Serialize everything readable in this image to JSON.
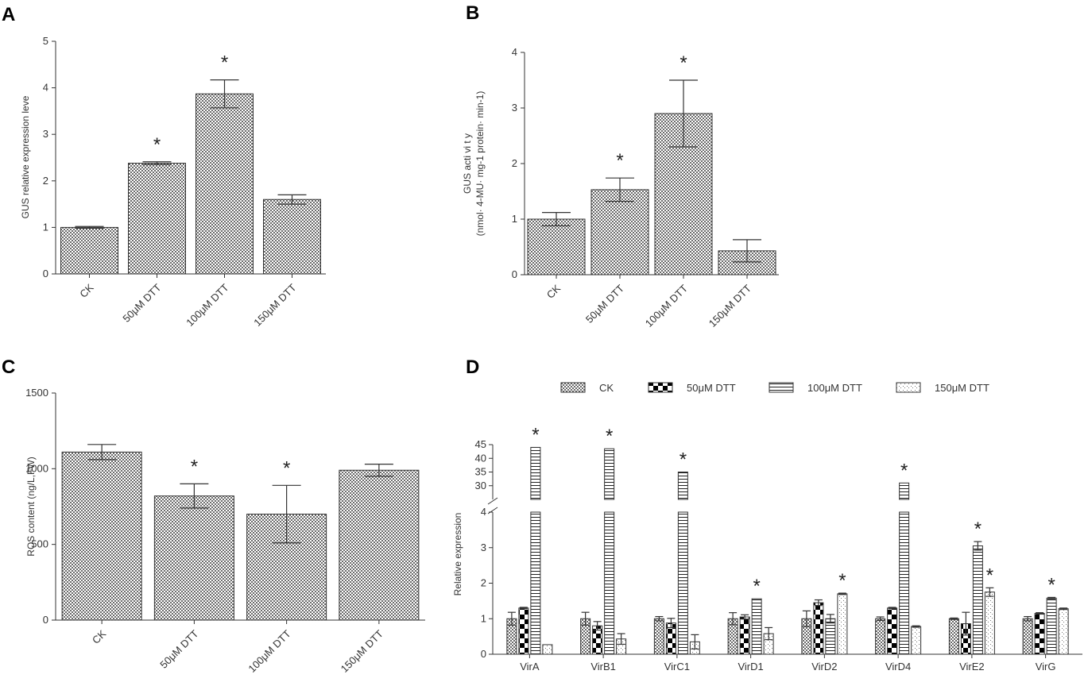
{
  "chart_data": [
    {
      "type": "bar",
      "panel": "A",
      "categories": [
        "CK",
        "50μM DTT",
        "100μM DTT",
        "150μM DTT"
      ],
      "values": [
        1.0,
        2.38,
        3.87,
        1.6
      ],
      "errors": [
        0.02,
        0.03,
        0.3,
        0.1
      ],
      "significant": [
        false,
        true,
        true,
        false
      ],
      "ylabel": "GUS relative expression leve",
      "ylim": [
        0,
        5
      ],
      "yticks": [
        0,
        1,
        2,
        3,
        4,
        5
      ],
      "star": "*"
    },
    {
      "type": "bar",
      "panel": "B",
      "categories": [
        "CK",
        "50μM DTT",
        "100μM DTT",
        "150μM DTT"
      ],
      "values": [
        1.0,
        1.53,
        2.9,
        0.43
      ],
      "errors": [
        0.12,
        0.21,
        0.6,
        0.2
      ],
      "significant": [
        false,
        true,
        true,
        false
      ],
      "ylabel": "GUS acti vi t y",
      "ylabel2": "(nmol· 4-MU· mg-1 protein· min-1)",
      "ylim": [
        0,
        4
      ],
      "yticks": [
        0,
        1,
        2,
        3,
        4
      ],
      "star": "*"
    },
    {
      "type": "bar",
      "panel": "C",
      "categories": [
        "CK",
        "50μM DTT",
        "100μM DTT",
        "150μM DTT"
      ],
      "values": [
        1110,
        820,
        700,
        990
      ],
      "errors": [
        50,
        80,
        190,
        40
      ],
      "significant": [
        false,
        true,
        true,
        false
      ],
      "ylabel": "ROS content (ng/L,FW)",
      "ylim": [
        0,
        1500
      ],
      "yticks": [
        0,
        500,
        1000,
        1500
      ],
      "star": "*"
    },
    {
      "type": "bar",
      "panel": "D",
      "categories": [
        "VirA",
        "VirB1",
        "VirC1",
        "VirD1",
        "VirD2",
        "VirD4",
        "VirE2",
        "VirG"
      ],
      "series": [
        {
          "name": "CK",
          "values": [
            1.0,
            1.0,
            1.0,
            1.0,
            1.0,
            1.0,
            1.0,
            1.0
          ],
          "errors": [
            0.18,
            0.18,
            0.06,
            0.17,
            0.22,
            0.05,
            0.02,
            0.06
          ],
          "significant": [
            false,
            false,
            false,
            false,
            false,
            false,
            false,
            false
          ]
        },
        {
          "name": "50μM DTT",
          "values": [
            1.3,
            0.8,
            0.88,
            1.05,
            1.45,
            1.3,
            0.86,
            1.15
          ],
          "errors": [
            0.02,
            0.12,
            0.13,
            0.06,
            0.08,
            0.02,
            0.32,
            0.02
          ],
          "significant": [
            false,
            false,
            false,
            false,
            false,
            false,
            false,
            false
          ]
        },
        {
          "name": "100μM DTT",
          "values": [
            44,
            43.5,
            35,
            1.56,
            1.0,
            31,
            3.05,
            1.58
          ],
          "errors": [
            0,
            0,
            0,
            0,
            0.12,
            0,
            0.12,
            0.02
          ],
          "significant": [
            true,
            true,
            true,
            true,
            false,
            true,
            true,
            true
          ]
        },
        {
          "name": "150μM DTT",
          "values": [
            0.27,
            0.43,
            0.35,
            0.58,
            1.7,
            0.78,
            1.75,
            1.28
          ],
          "errors": [
            0.0,
            0.15,
            0.2,
            0.17,
            0.02,
            0.02,
            0.12,
            0.02
          ],
          "significant": [
            false,
            false,
            false,
            false,
            true,
            false,
            true,
            false
          ]
        }
      ],
      "ylabel": "Relative expression",
      "ylim_lower": [
        0,
        4
      ],
      "ylim_upper": [
        25,
        45
      ],
      "yticks_lower": [
        0,
        1,
        2,
        3,
        4
      ],
      "yticks_upper": [
        30,
        35,
        40,
        45
      ],
      "star": "*"
    }
  ]
}
